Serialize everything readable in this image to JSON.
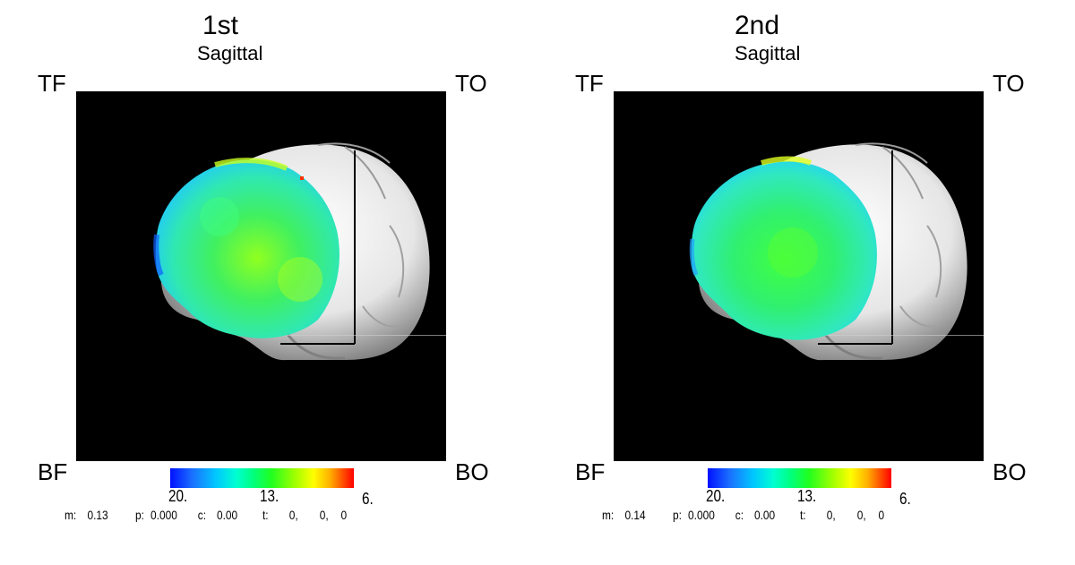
{
  "panels": [
    {
      "title": "1st",
      "view": "Sagittal",
      "corners": {
        "top_left": "TF",
        "top_right": "TO",
        "bottom_left": "BF",
        "bottom_right": "BO"
      },
      "colorbar": {
        "min_label": "20.",
        "mid_label": "13.",
        "max_label": "6."
      },
      "stats": {
        "m_label": "m:",
        "m_value": "0.13",
        "p_label": "p:",
        "p_value": "0.000",
        "c_label": "c:",
        "c_value": "0.00",
        "t_label": "t:",
        "t_v1": "0,",
        "t_v2": "0,",
        "t_v3": "0"
      }
    },
    {
      "title": "2nd",
      "view": "Sagittal",
      "corners": {
        "top_left": "TF",
        "top_right": "TO",
        "bottom_left": "BF",
        "bottom_right": "BO"
      },
      "colorbar": {
        "min_label": "20.",
        "mid_label": "13.",
        "max_label": "6."
      },
      "stats": {
        "m_label": "m:",
        "m_value": "0.14",
        "p_label": "p:",
        "p_value": "0.000",
        "c_label": "c:",
        "c_value": "0.00",
        "t_label": "t:",
        "t_v1": "0,",
        "t_v2": "0,",
        "t_v3": "0"
      }
    }
  ],
  "colors": {
    "background": "#000000",
    "brain": "#d8d8d8",
    "map_low": "#0010ff",
    "map_mid": "#20ff20",
    "map_high": "#ff0000"
  }
}
